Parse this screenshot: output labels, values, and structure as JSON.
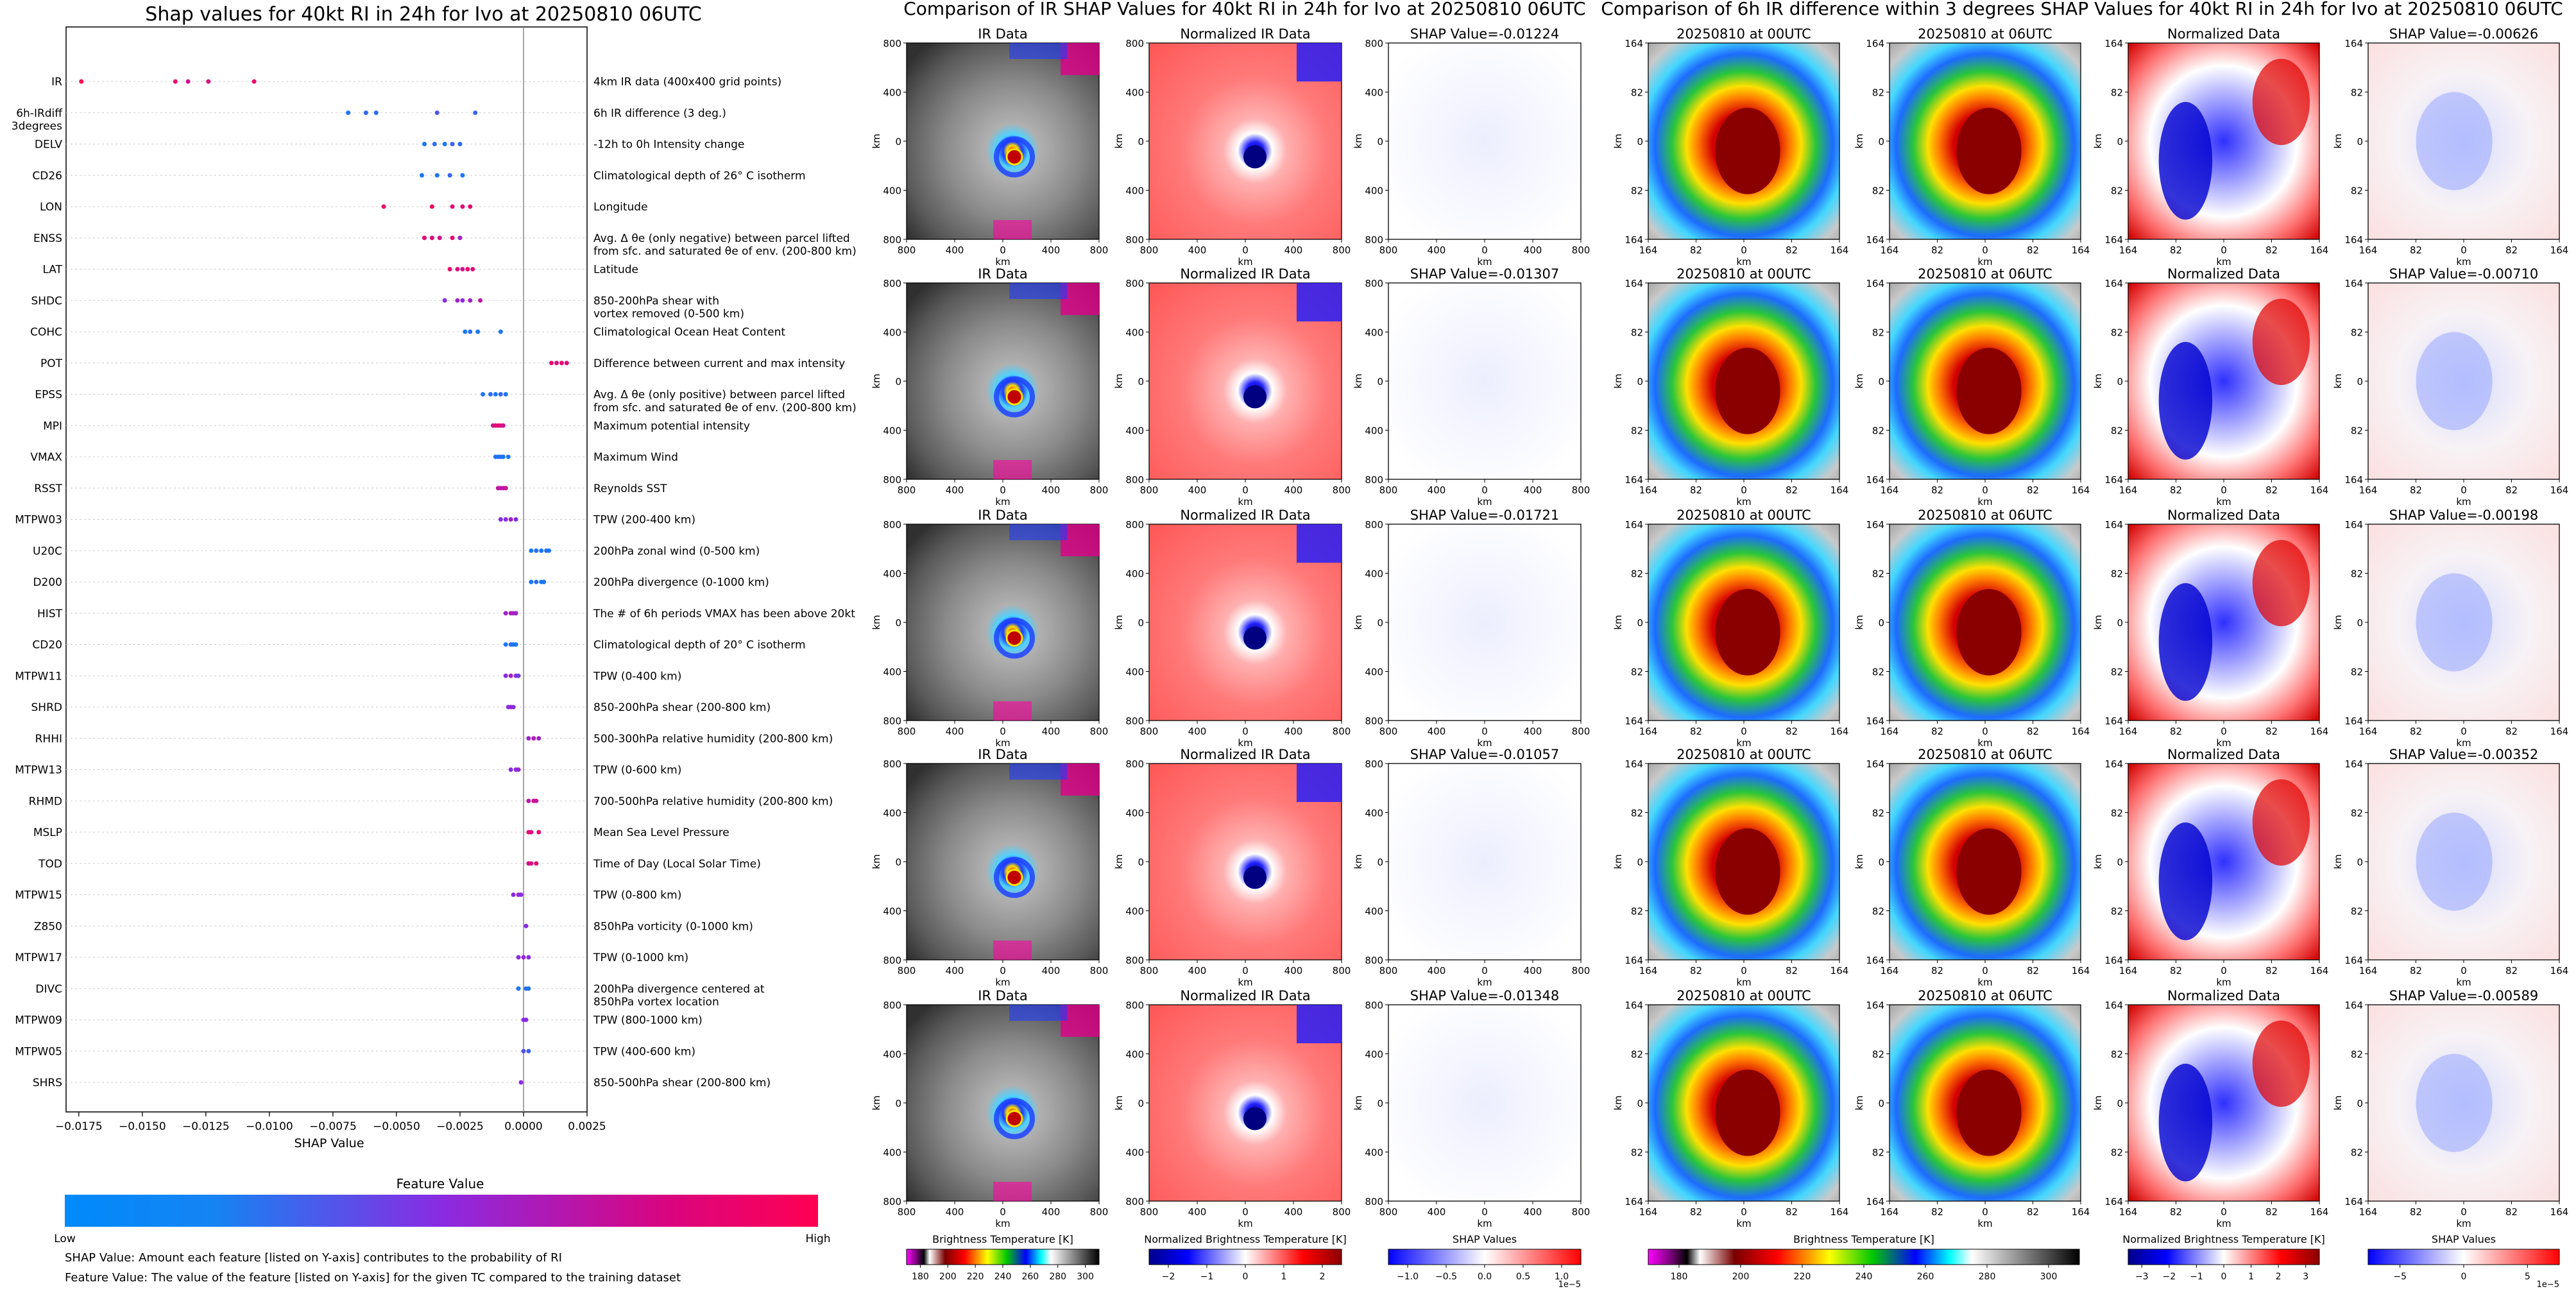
{
  "left_title": "Shap values for 40kt RI in 24h for Ivo at 20250810 06UTC",
  "mid_title": "Comparison of IR SHAP Values for 40kt RI in 24h for Ivo at 20250810 06UTC",
  "right_title": "Comparison of 6h IR difference within 3 degrees SHAP Values for 40kt RI in 24h for Ivo at 20250810 06UTC",
  "colors": {
    "low": "#008afb",
    "mid": "#8a2be2",
    "high": "#ff0052"
  },
  "chart_data": [
    {
      "type": "scatter",
      "title": "Shap values for 40kt RI in 24h for Ivo at 20250810 06UTC",
      "xlabel": "SHAP Value",
      "xlim": [
        -0.018,
        0.0025
      ],
      "xticks": [
        "−0.0175",
        "−0.0150",
        "−0.0125",
        "−0.0100",
        "−0.0075",
        "−0.0050",
        "−0.0025",
        "0.0000",
        "0.0025"
      ],
      "xtick_values": [
        -0.0175,
        -0.015,
        -0.0125,
        -0.01,
        -0.0075,
        -0.005,
        -0.0025,
        0.0,
        0.0025
      ],
      "colorbar": {
        "title": "Feature Value",
        "low": "Low",
        "high": "High"
      },
      "features": [
        {
          "name": "IR",
          "desc": "4km IR data (400x400 grid points)",
          "points": [
            [
              -0.0174,
              1
            ],
            [
              -0.0137,
              0.9
            ],
            [
              -0.0132,
              0.8
            ],
            [
              -0.0124,
              0.85
            ],
            [
              -0.0106,
              0.9
            ]
          ]
        },
        {
          "name": "6h-IRdiff\n3degrees",
          "desc": "6h IR difference (3 deg.)",
          "points": [
            [
              -0.0069,
              0.1
            ],
            [
              -0.0062,
              0.2
            ],
            [
              -0.0058,
              0.15
            ],
            [
              -0.0034,
              0.3
            ],
            [
              -0.0019,
              0.2
            ]
          ]
        },
        {
          "name": "DELV",
          "desc": "-12h to 0h Intensity change",
          "points": [
            [
              -0.0039,
              0.1
            ],
            [
              -0.0035,
              0.15
            ],
            [
              -0.0031,
              0.1
            ],
            [
              -0.0028,
              0.2
            ],
            [
              -0.0025,
              0.15
            ]
          ]
        },
        {
          "name": "CD26",
          "desc": "Climatological depth of 26° C isotherm",
          "points": [
            [
              -0.004,
              0.1
            ],
            [
              -0.0034,
              0.1
            ],
            [
              -0.0029,
              0.2
            ],
            [
              -0.0024,
              0.1
            ]
          ]
        },
        {
          "name": "LON",
          "desc": "Longitude",
          "points": [
            [
              -0.0055,
              0.9
            ],
            [
              -0.0036,
              0.95
            ],
            [
              -0.0028,
              0.9
            ],
            [
              -0.0024,
              0.85
            ],
            [
              -0.0021,
              0.9
            ]
          ]
        },
        {
          "name": "ENSS",
          "desc": "Avg. Δ θe (only negative) between parcel lifted\nfrom sfc. and saturated θe of env. (200-800 km)",
          "points": [
            [
              -0.0039,
              0.9
            ],
            [
              -0.0036,
              0.85
            ],
            [
              -0.0033,
              0.8
            ],
            [
              -0.0028,
              0.9
            ],
            [
              -0.0025,
              0.6
            ]
          ]
        },
        {
          "name": "LAT",
          "desc": "Latitude",
          "points": [
            [
              -0.0029,
              0.9
            ],
            [
              -0.0026,
              0.85
            ],
            [
              -0.0024,
              0.8
            ],
            [
              -0.0022,
              0.9
            ],
            [
              -0.002,
              0.85
            ]
          ]
        },
        {
          "name": "SHDC",
          "desc": "850-200hPa shear with\nvortex removed (0-500 km)",
          "points": [
            [
              -0.0031,
              0.5
            ],
            [
              -0.0026,
              0.6
            ],
            [
              -0.0024,
              0.5
            ],
            [
              -0.0021,
              0.6
            ],
            [
              -0.0017,
              0.7
            ]
          ]
        },
        {
          "name": "COHC",
          "desc": "Climatological Ocean Heat Content",
          "points": [
            [
              -0.0023,
              0.1
            ],
            [
              -0.0021,
              0.15
            ],
            [
              -0.0018,
              0.1
            ],
            [
              -0.0009,
              0.1
            ]
          ]
        },
        {
          "name": "POT",
          "desc": "Difference between current and max intensity",
          "points": [
            [
              0.0011,
              0.9
            ],
            [
              0.0013,
              0.85
            ],
            [
              0.0015,
              0.9
            ],
            [
              0.0017,
              0.85
            ]
          ]
        },
        {
          "name": "EPSS",
          "desc": "Avg. Δ θe (only positive) between parcel lifted\nfrom sfc. and saturated θe of env. (200-800 km)",
          "points": [
            [
              -0.0016,
              0.1
            ],
            [
              -0.0013,
              0.15
            ],
            [
              -0.0011,
              0.1
            ],
            [
              -0.0009,
              0.2
            ],
            [
              -0.0007,
              0.1
            ]
          ]
        },
        {
          "name": "MPI",
          "desc": "Maximum potential intensity",
          "points": [
            [
              -0.0012,
              0.8
            ],
            [
              -0.0011,
              0.85
            ],
            [
              -0.001,
              0.9
            ],
            [
              -0.0009,
              0.85
            ],
            [
              -0.0008,
              0.8
            ]
          ]
        },
        {
          "name": "VMAX",
          "desc": "Maximum Wind",
          "points": [
            [
              -0.0011,
              0.15
            ],
            [
              -0.001,
              0.1
            ],
            [
              -0.0009,
              0.15
            ],
            [
              -0.0008,
              0.1
            ],
            [
              -0.0006,
              0.1
            ]
          ]
        },
        {
          "name": "RSST",
          "desc": "Reynolds SST",
          "points": [
            [
              -0.001,
              0.7
            ],
            [
              -0.0009,
              0.75
            ],
            [
              -0.0008,
              0.7
            ],
            [
              -0.0007,
              0.75
            ]
          ]
        },
        {
          "name": "MTPW03",
          "desc": "TPW (200-400 km)",
          "points": [
            [
              -0.0009,
              0.5
            ],
            [
              -0.0007,
              0.5
            ],
            [
              -0.0005,
              0.6
            ],
            [
              -0.0003,
              0.5
            ]
          ]
        },
        {
          "name": "U20C",
          "desc": "200hPa zonal wind (0-500 km)",
          "points": [
            [
              0.0003,
              0.1
            ],
            [
              0.0005,
              0.15
            ],
            [
              0.0007,
              0.1
            ],
            [
              0.0009,
              0.15
            ],
            [
              0.001,
              0.1
            ]
          ]
        },
        {
          "name": "D200",
          "desc": "200hPa divergence (0-1000 km)",
          "points": [
            [
              0.0003,
              0.1
            ],
            [
              0.0005,
              0.15
            ],
            [
              0.0007,
              0.1
            ],
            [
              0.0008,
              0.1
            ]
          ]
        },
        {
          "name": "HIST",
          "desc": "The # of 6h periods VMAX has been above 20kt",
          "points": [
            [
              -0.0007,
              0.6
            ],
            [
              -0.0005,
              0.65
            ],
            [
              -0.0004,
              0.6
            ],
            [
              -0.0003,
              0.6
            ]
          ]
        },
        {
          "name": "CD20",
          "desc": "Climatological depth of 20° C isotherm",
          "points": [
            [
              -0.0007,
              0.1
            ],
            [
              -0.0005,
              0.15
            ],
            [
              -0.0004,
              0.1
            ],
            [
              -0.0003,
              0.1
            ]
          ]
        },
        {
          "name": "MTPW11",
          "desc": "TPW (0-400 km)",
          "points": [
            [
              -0.0007,
              0.5
            ],
            [
              -0.0005,
              0.6
            ],
            [
              -0.0003,
              0.5
            ],
            [
              -0.0002,
              0.4
            ]
          ]
        },
        {
          "name": "SHRD",
          "desc": "850-200hPa shear (200-800 km)",
          "points": [
            [
              -0.0006,
              0.5
            ],
            [
              -0.0005,
              0.55
            ],
            [
              -0.0004,
              0.5
            ]
          ]
        },
        {
          "name": "RHHI",
          "desc": "500-300hPa relative humidity (200-800 km)",
          "points": [
            [
              0.0002,
              0.6
            ],
            [
              0.0004,
              0.65
            ],
            [
              0.0006,
              0.6
            ]
          ]
        },
        {
          "name": "MTPW13",
          "desc": "TPW (0-600 km)",
          "points": [
            [
              -0.0005,
              0.5
            ],
            [
              -0.0003,
              0.5
            ],
            [
              -0.0002,
              0.55
            ]
          ]
        },
        {
          "name": "RHMD",
          "desc": "700-500hPa relative humidity (200-800 km)",
          "points": [
            [
              0.0002,
              0.7
            ],
            [
              0.0004,
              0.8
            ],
            [
              0.0005,
              0.75
            ]
          ]
        },
        {
          "name": "MSLP",
          "desc": "Mean Sea Level Pressure",
          "points": [
            [
              0.0002,
              0.9
            ],
            [
              0.0003,
              0.85
            ],
            [
              0.0006,
              0.9
            ]
          ]
        },
        {
          "name": "TOD",
          "desc": "Time of Day (Local Solar Time)",
          "points": [
            [
              0.0002,
              0.8
            ],
            [
              0.0003,
              0.85
            ],
            [
              0.0005,
              0.9
            ]
          ]
        },
        {
          "name": "MTPW15",
          "desc": "TPW (0-800 km)",
          "points": [
            [
              -0.0004,
              0.5
            ],
            [
              -0.0002,
              0.55
            ],
            [
              -0.0001,
              0.5
            ]
          ]
        },
        {
          "name": "Z850",
          "desc": "850hPa vorticity (0-1000 km)",
          "points": [
            [
              0.0001,
              0.5
            ]
          ]
        },
        {
          "name": "MTPW17",
          "desc": "TPW (0-1000 km)",
          "points": [
            [
              -0.0002,
              0.5
            ],
            [
              0.0,
              0.55
            ],
            [
              0.0002,
              0.5
            ]
          ]
        },
        {
          "name": "DIVC",
          "desc": "200hPa divergence centered at\n850hPa vortex location",
          "points": [
            [
              -0.0002,
              0.1
            ],
            [
              0.0001,
              0.15
            ],
            [
              0.0002,
              0.1
            ]
          ]
        },
        {
          "name": "MTPW09",
          "desc": "TPW (800-1000 km)",
          "points": [
            [
              0.0,
              0.5
            ],
            [
              0.0001,
              0.5
            ]
          ]
        },
        {
          "name": "MTPW05",
          "desc": "TPW (400-600 km)",
          "points": [
            [
              0.0,
              0.3
            ],
            [
              0.0002,
              0.2
            ]
          ]
        },
        {
          "name": "SHRS",
          "desc": "850-500hPa shear (200-800 km)",
          "points": [
            [
              -0.0001,
              0.5
            ]
          ]
        }
      ]
    }
  ],
  "footer": {
    "line1": "SHAP Value: Amount each feature [listed on Y-axis] contributes to the probability of RI",
    "line2": "Feature Value: The value of the feature [listed on Y-axis] for the given TC compared to the training dataset"
  },
  "mid": {
    "col_titles": [
      "IR Data",
      "Normalized IR Data"
    ],
    "shap_titles": [
      "SHAP Value=-0.01224",
      "SHAP Value=-0.01307",
      "SHAP Value=-0.01721",
      "SHAP Value=-0.01057",
      "SHAP Value=-0.01348"
    ],
    "yticks": [
      "800",
      "400",
      "0",
      "400",
      "800"
    ],
    "xticks": [
      "800",
      "400",
      "0",
      "400",
      "800"
    ],
    "axis_unit": "km",
    "colorbars": [
      {
        "label": "Brightness Temperature [K]",
        "ticks": [
          "180",
          "200",
          "220",
          "240",
          "260",
          "280",
          "300"
        ]
      },
      {
        "label": "Normalized Brightness Temperature [K]",
        "ticks": [
          "−2",
          "−1",
          "0",
          "1",
          "2"
        ]
      },
      {
        "label": "SHAP Values",
        "ticks": [
          "−1.0",
          "−0.5",
          "0.0",
          "0.5",
          "1.0"
        ],
        "exp": "1e−5"
      }
    ]
  },
  "right": {
    "col_titles": [
      "20250810 at 00UTC",
      "20250810 at 06UTC",
      "Normalized Data"
    ],
    "shap_titles": [
      "SHAP Value=-0.00626",
      "SHAP Value=-0.00710",
      "SHAP Value=-0.00198",
      "SHAP Value=-0.00352",
      "SHAP Value=-0.00589"
    ],
    "yticks": [
      "164",
      "82",
      "0",
      "82",
      "164"
    ],
    "xticks": [
      "164",
      "82",
      "0",
      "82",
      "164"
    ],
    "axis_unit": "km",
    "colorbars": [
      {
        "label": "Brightness Temperature [K]",
        "ticks": [
          "180",
          "200",
          "220",
          "240",
          "260",
          "280",
          "300"
        ]
      },
      {
        "label": "Normalized Brightness Temperature [K]",
        "ticks": [
          "−3",
          "−2",
          "−1",
          "0",
          "1",
          "2",
          "3"
        ]
      },
      {
        "label": "SHAP Values",
        "ticks": [
          "−5",
          "0",
          "5"
        ],
        "exp": "1e−5"
      }
    ]
  }
}
